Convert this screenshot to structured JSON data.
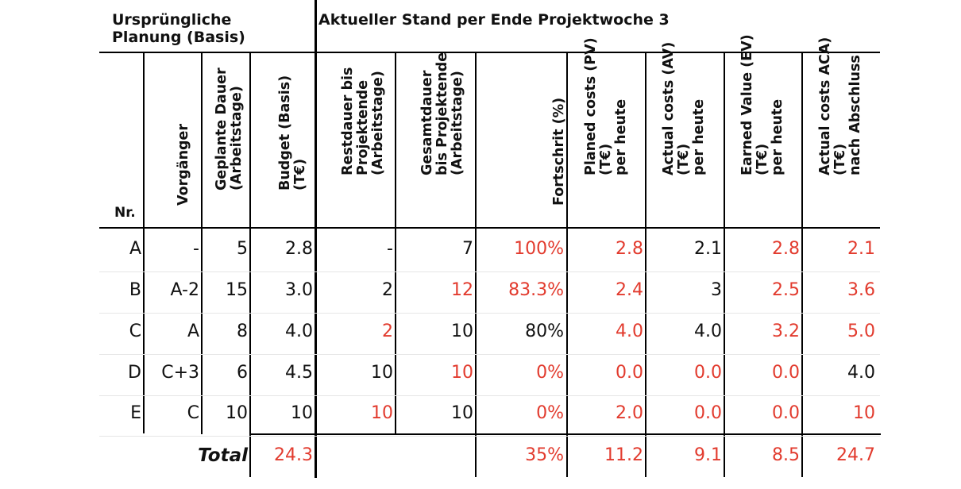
{
  "header": {
    "basis_line1": "Ursprüngliche",
    "basis_line2": "Planung (Basis)",
    "current": "Aktueller Stand per Ende Projektwoche 3"
  },
  "columns": {
    "nr": "Nr.",
    "vorgaenger": "Vorgänger",
    "dauer_1": "Geplante Dauer",
    "dauer_2": "(Arbeitstage)",
    "budget_1": "Budget (Basis)",
    "budget_2": "(T€)",
    "rest_1": "Restdauer bis",
    "rest_2": "Projektende",
    "rest_3": "(Arbeitstage)",
    "gesamt_1": "Gesamtdauer",
    "gesamt_2": "bis Projektende",
    "gesamt_3": "(Arbeitstage)",
    "fortschritt": "Fortschrit (%)",
    "pv_1": "Planed costs (PV)",
    "pv_2": "(T€)",
    "pv_3": "per heute",
    "av_1": "Actual costs (AV)",
    "av_2": "(T€)",
    "av_3": "per heute",
    "ev_1": "Earned Value (EV)",
    "ev_2": "(T€)",
    "ev_3": "per heute",
    "aca_1": "Actual costs ACA)",
    "aca_2": "(T€)",
    "aca_3": "nach Abschluss"
  },
  "rows": [
    {
      "nr": "A",
      "vorg": "-",
      "dauer": "5",
      "budget": "2.8",
      "rest": "-",
      "gesamt": "7",
      "fort": "100%",
      "pv": "2.8",
      "av": "2.1",
      "ev": "2.8",
      "aca": "2.1"
    },
    {
      "nr": "B",
      "vorg": "A-2",
      "dauer": "15",
      "budget": "3.0",
      "rest": "2",
      "gesamt": "12",
      "fort": "83.3%",
      "pv": "2.4",
      "av": "3",
      "ev": "2.5",
      "aca": "3.6"
    },
    {
      "nr": "C",
      "vorg": "A",
      "dauer": "8",
      "budget": "4.0",
      "rest": "2",
      "gesamt": "10",
      "fort": "80%",
      "pv": "4.0",
      "av": "4.0",
      "ev": "3.2",
      "aca": "5.0"
    },
    {
      "nr": "D",
      "vorg": "C+3",
      "dauer": "6",
      "budget": "4.5",
      "rest": "10",
      "gesamt": "10",
      "fort": "0%",
      "pv": "0.0",
      "av": "0.0",
      "ev": "0.0",
      "aca": "4.0"
    },
    {
      "nr": "E",
      "vorg": "C",
      "dauer": "10",
      "budget": "10",
      "rest": "10",
      "gesamt": "10",
      "fort": "0%",
      "pv": "2.0",
      "av": "0.0",
      "ev": "0.0",
      "aca": "10"
    }
  ],
  "total": {
    "label": "Total",
    "budget": "24.3",
    "fort": "35%",
    "pv": "11.2",
    "av": "9.1",
    "ev": "8.5",
    "aca": "24.7"
  },
  "colors": {
    "red": "#e23b2e",
    "black": "#111111"
  }
}
